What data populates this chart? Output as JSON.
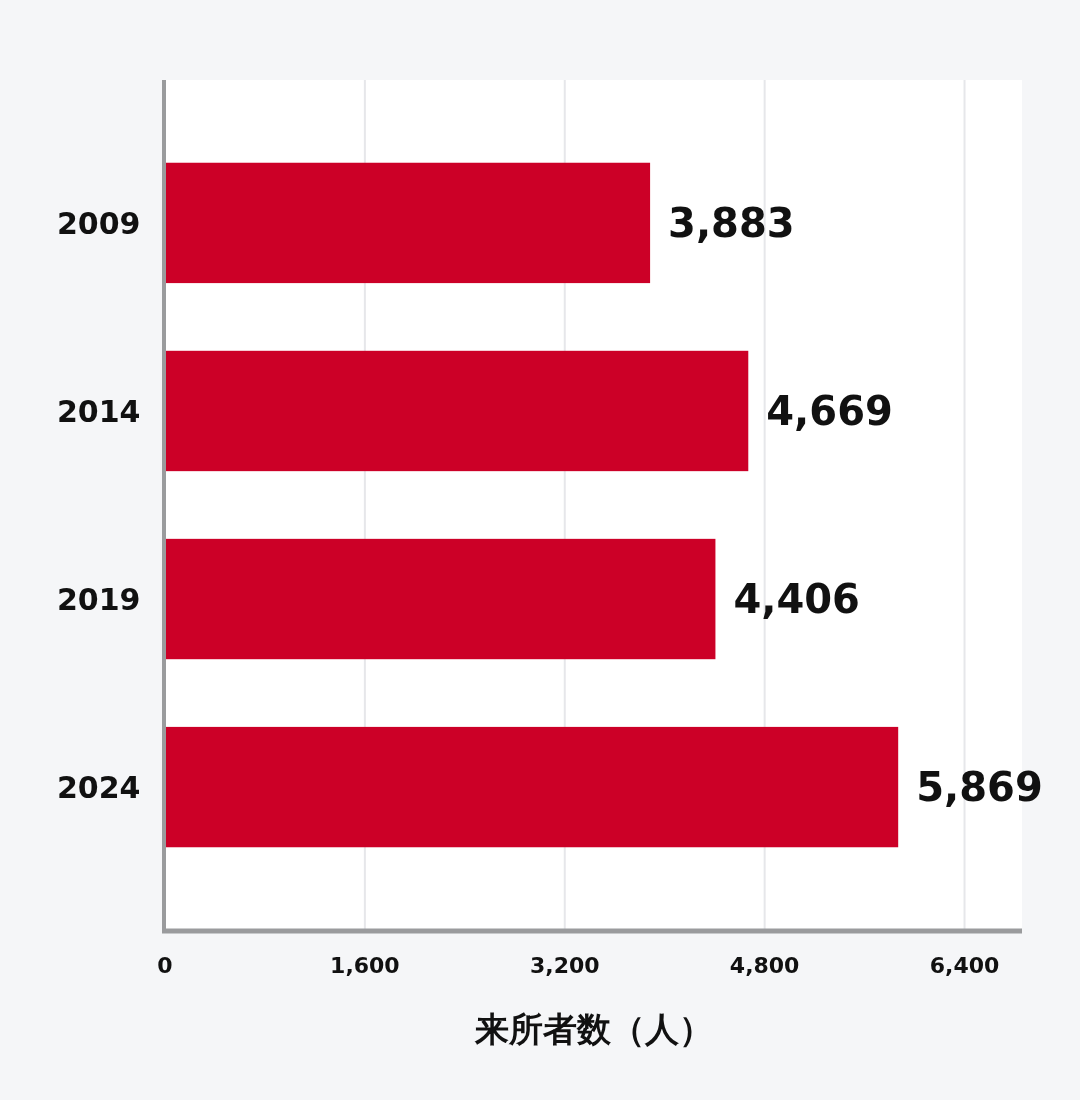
{
  "chart_data": {
    "type": "bar",
    "orientation": "horizontal",
    "categories": [
      "2009",
      "2014",
      "2019",
      "2024"
    ],
    "values": [
      3883,
      4669,
      4406,
      5869
    ],
    "value_labels": [
      "3,883",
      "4,669",
      "4,406",
      "5,869"
    ],
    "color": "#cc0027",
    "xlim": [
      0,
      6860
    ],
    "xticks": [
      0,
      {
        "value": 1600,
        "label": "1,600"
      },
      {
        "value": 3200,
        "label": "3,200"
      },
      {
        "value": 4800,
        "label": "4,800"
      },
      {
        "value": 6400,
        "label": "6,400"
      }
    ],
    "xlabel": "来所者数（人）",
    "grid": "x"
  }
}
